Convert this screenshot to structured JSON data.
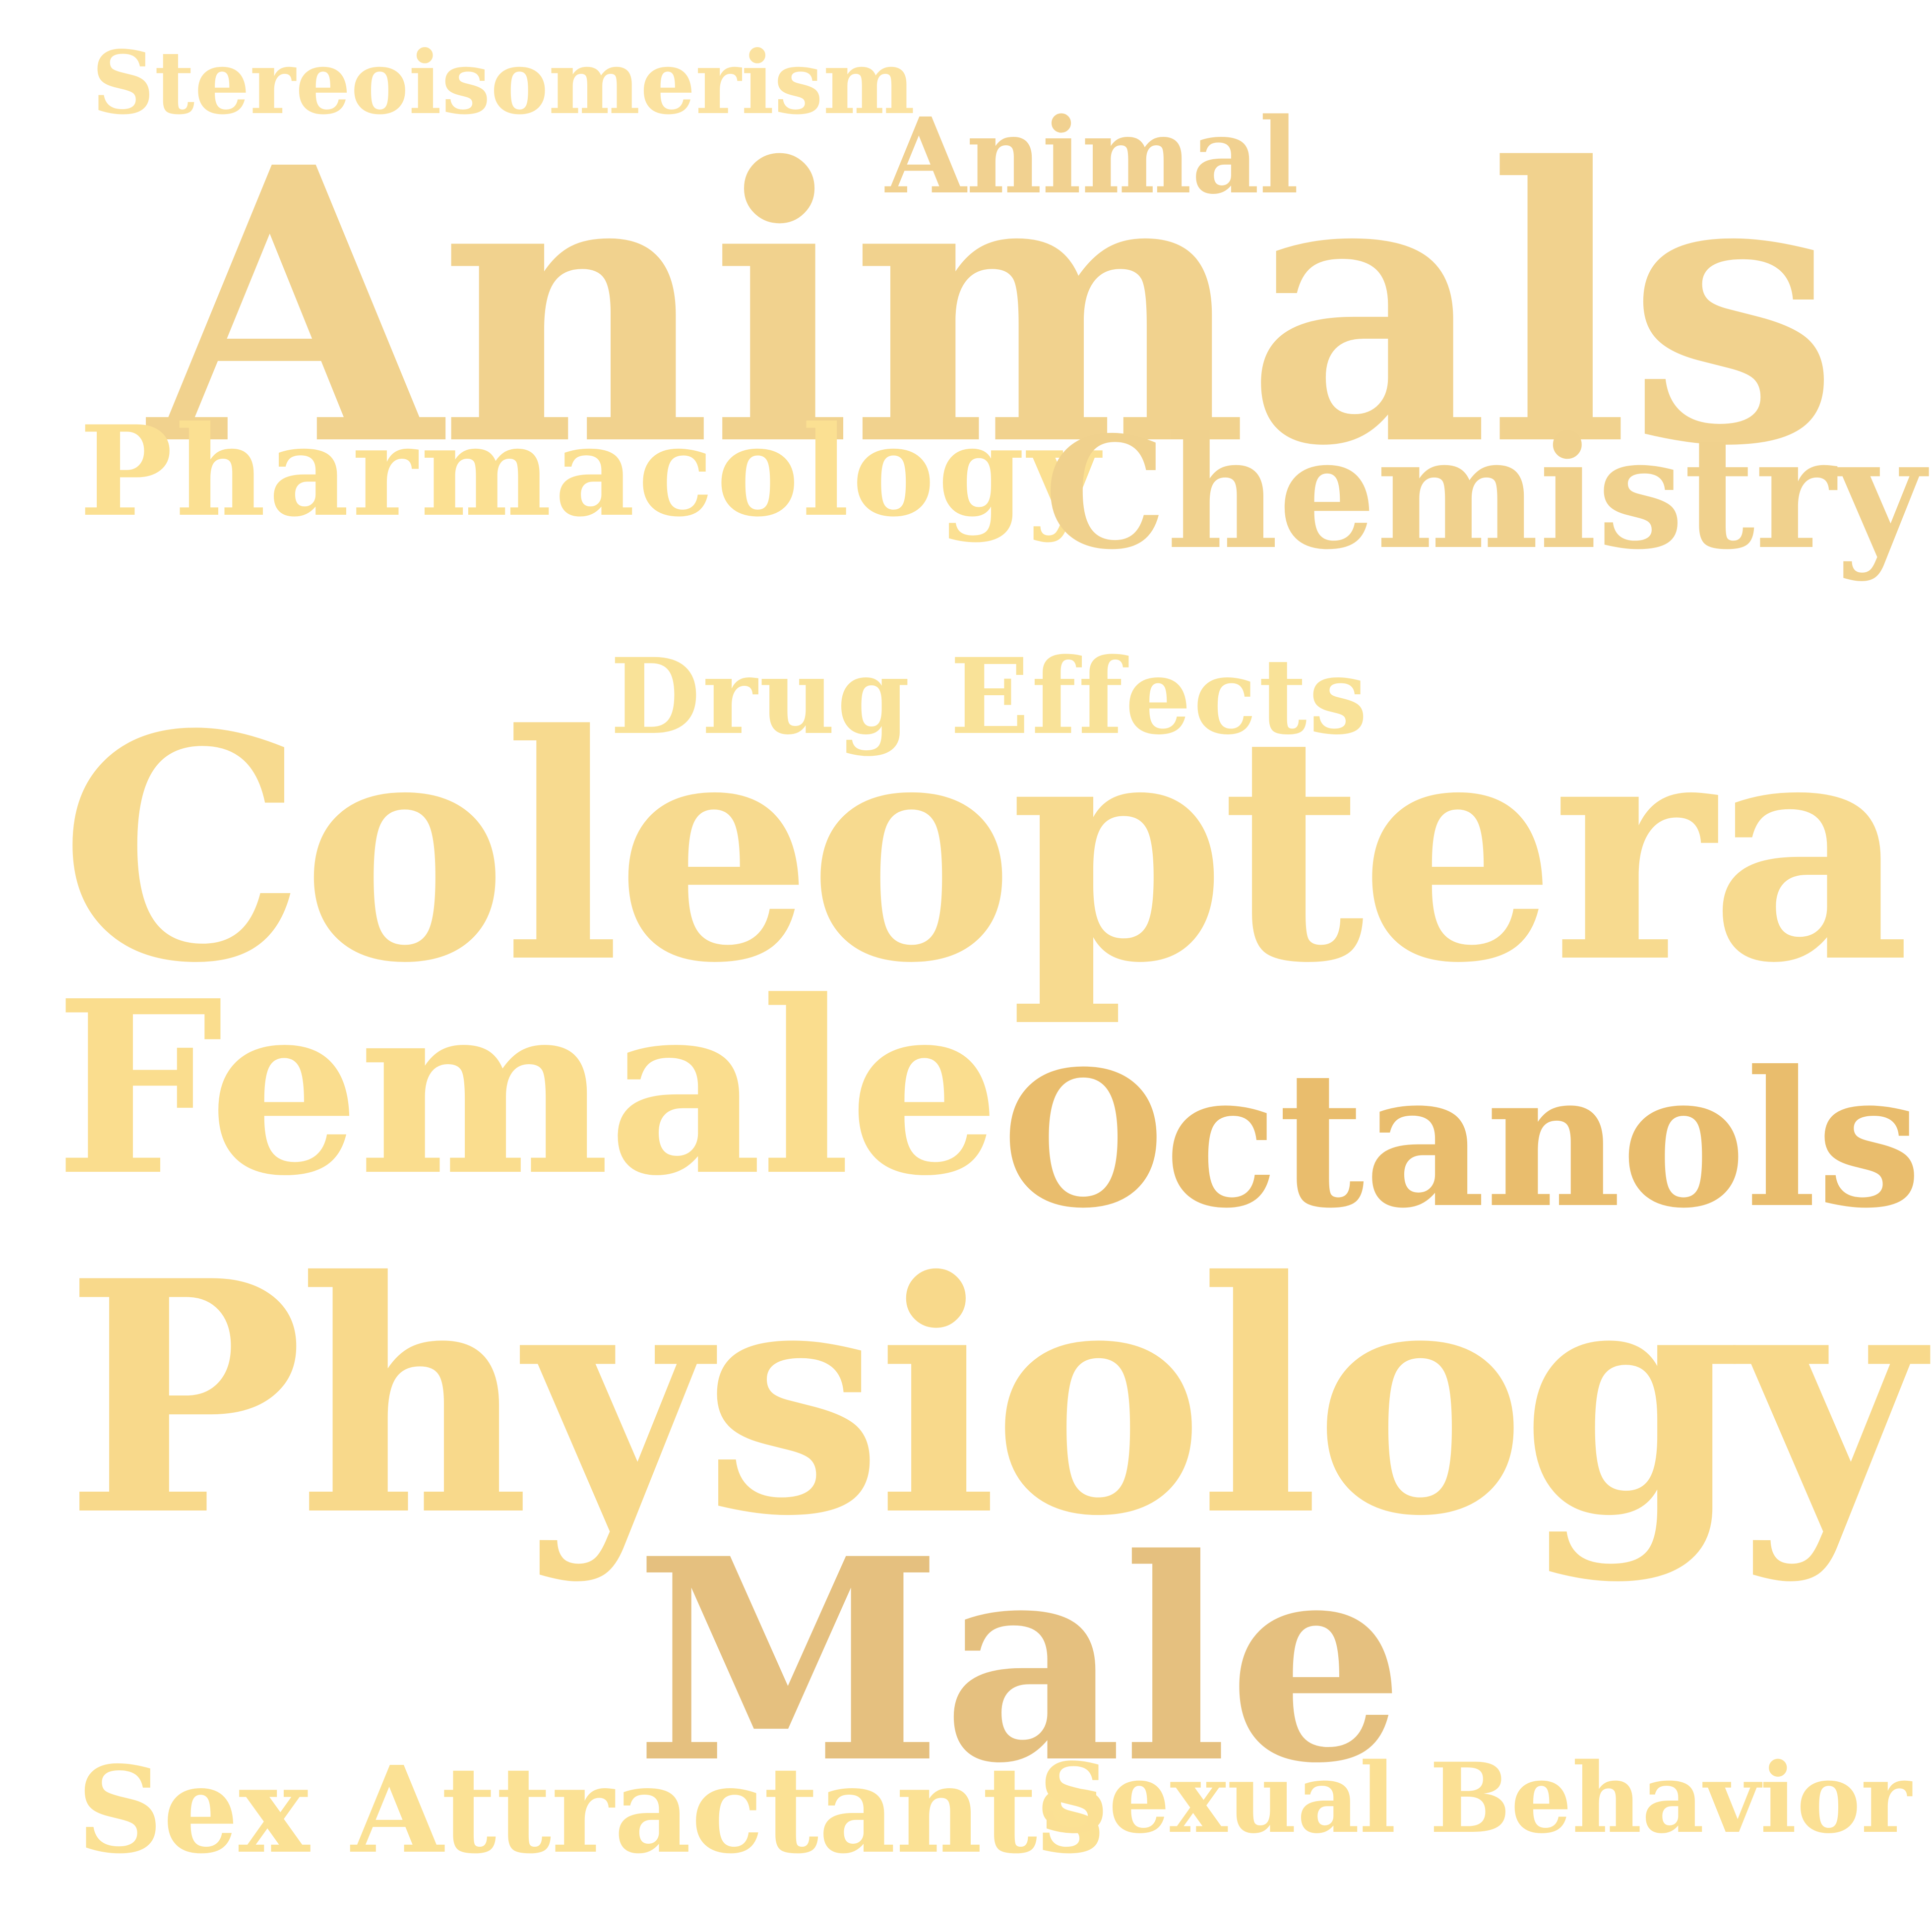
{
  "word_cloud": {
    "words": [
      {
        "text": "Stereoisomerism",
        "color": "#fbe2a0"
      },
      {
        "text": "Animal",
        "color": "#f1d190"
      },
      {
        "text": "Animals",
        "color": "#f1d28e"
      },
      {
        "text": "Pharmacology",
        "color": "#fbe092"
      },
      {
        "text": "Chemistry",
        "color": "#f0d18d"
      },
      {
        "text": "Drug Effects",
        "color": "#f9e298"
      },
      {
        "text": "Coleoptera",
        "color": "#f7da8f"
      },
      {
        "text": "Female",
        "color": "#fadd8e"
      },
      {
        "text": "Octanols",
        "color": "#e9bd6d"
      },
      {
        "text": "Physiology",
        "color": "#f8d98b"
      },
      {
        "text": "Male",
        "color": "#e5c07f"
      },
      {
        "text": "Sex Attractants",
        "color": "#fbe194"
      },
      {
        "text": "Sexual Behavior",
        "color": "#fbe094"
      }
    ]
  }
}
